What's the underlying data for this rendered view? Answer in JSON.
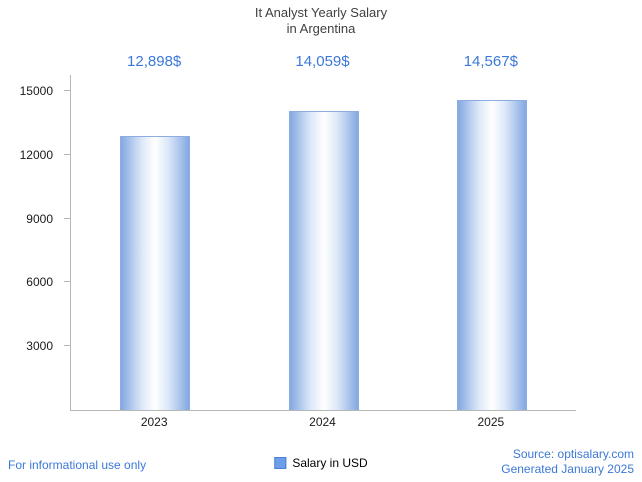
{
  "chart_data": {
    "type": "bar",
    "title": "It Analyst Yearly Salary in Argentina",
    "title_lines": [
      "It Analyst Yearly Salary",
      "in Argentina"
    ],
    "categories": [
      "2023",
      "2024",
      "2025"
    ],
    "values": [
      12898,
      14059,
      14567
    ],
    "value_labels": [
      "12,898$",
      "14,059$",
      "14,567$"
    ],
    "series": [
      {
        "name": "Salary in USD",
        "values": [
          12898,
          14059,
          14567
        ]
      }
    ],
    "xlabel": "",
    "ylabel": "",
    "ylim": [
      0,
      15000
    ],
    "yticks": [
      3000,
      6000,
      9000,
      12000,
      15000
    ],
    "grid": false,
    "legend_position": "bottom-center"
  },
  "legend": {
    "label": "Salary in USD"
  },
  "footer": {
    "left": "For informational use only",
    "source": "Source: optisalary.com",
    "generated": "Generated January 2025"
  },
  "colors": {
    "accent_text": "#3c78d8",
    "title_text": "#404040",
    "axis": "#b7b7b7",
    "bar_edge": "#84a8e2",
    "bar_mid": "#dbe7f8",
    "bar_center": "#ffffff",
    "bar_border": "#8cade0",
    "legend_swatch_fill": "#6d9eeb",
    "legend_swatch_border": "#4a7fd0"
  }
}
